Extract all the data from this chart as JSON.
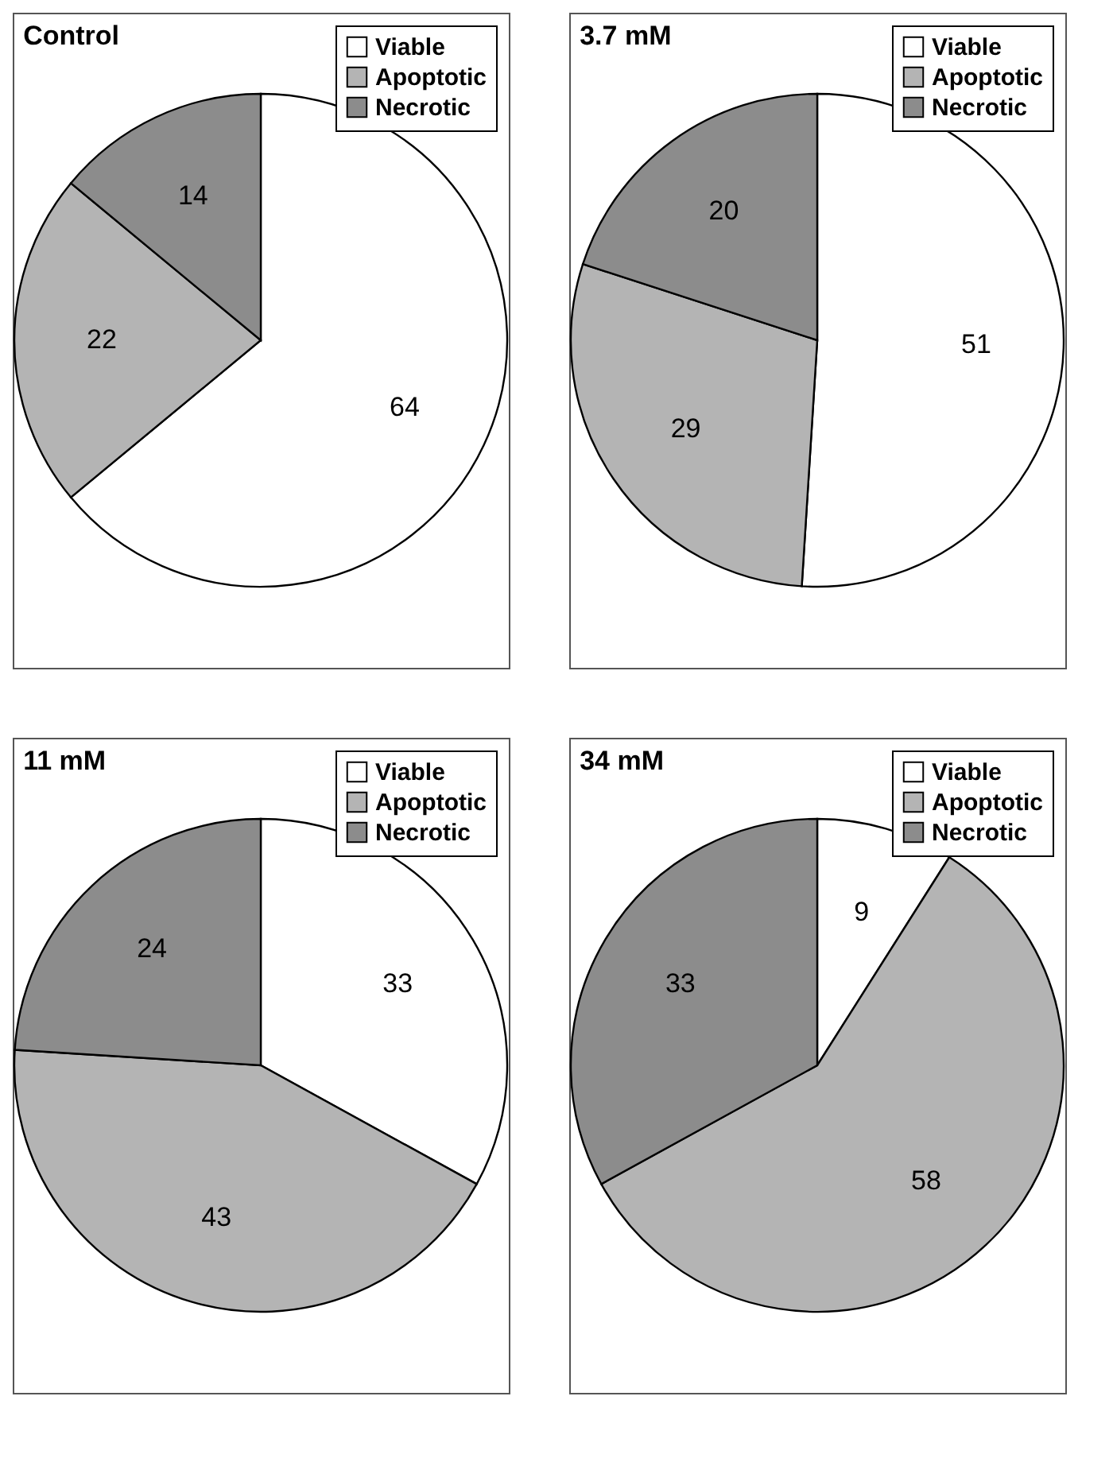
{
  "chart_data": [
    {
      "type": "pie",
      "title": "Control",
      "categories": [
        "Viable",
        "Apoptotic",
        "Necrotic"
      ],
      "values": [
        64,
        22,
        14
      ],
      "colors": [
        "#ffffff",
        "#b4b4b4",
        "#8c8c8c"
      ],
      "data_labels": true,
      "legend": "top right"
    },
    {
      "type": "pie",
      "title": "3.7 mM",
      "categories": [
        "Viable",
        "Apoptotic",
        "Necrotic"
      ],
      "values": [
        51,
        29,
        20
      ],
      "colors": [
        "#ffffff",
        "#b4b4b4",
        "#8c8c8c"
      ],
      "data_labels": true,
      "legend": "top right"
    },
    {
      "type": "pie",
      "title": "11 mM",
      "categories": [
        "Viable",
        "Apoptotic",
        "Necrotic"
      ],
      "values": [
        33,
        43,
        24
      ],
      "colors": [
        "#ffffff",
        "#b4b4b4",
        "#8c8c8c"
      ],
      "data_labels": true,
      "legend": "top right"
    },
    {
      "type": "pie",
      "title": "34 mM",
      "categories": [
        "Viable",
        "Apoptotic",
        "Necrotic"
      ],
      "values": [
        9,
        58,
        33
      ],
      "colors": [
        "#ffffff",
        "#b4b4b4",
        "#8c8c8c"
      ],
      "data_labels": true,
      "legend": "top right"
    }
  ]
}
